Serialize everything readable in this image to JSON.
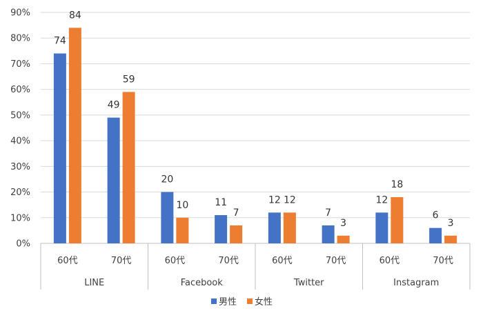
{
  "chart_data": {
    "type": "bar",
    "groups": [
      {
        "label": "LINE",
        "subcategories": [
          "60代",
          "70代"
        ]
      },
      {
        "label": "Facebook",
        "subcategories": [
          "60代",
          "70代"
        ]
      },
      {
        "label": "Twitter",
        "subcategories": [
          "60代",
          "70代"
        ]
      },
      {
        "label": "Instagram",
        "subcategories": [
          "60代",
          "70代"
        ]
      }
    ],
    "series": [
      {
        "name": "男性",
        "color": "#4472C4",
        "values": [
          74,
          49,
          20,
          11,
          12,
          7,
          12,
          6
        ],
        "labels": [
          "74",
          "49",
          "20",
          "11",
          "12",
          "7",
          "12",
          "6"
        ]
      },
      {
        "name": "女性",
        "color": "#ED7D31",
        "values": [
          84,
          59,
          10,
          7,
          12,
          3,
          18,
          3
        ],
        "labels": [
          "84",
          "59",
          "10",
          "7",
          "12",
          "3",
          "18",
          "3"
        ]
      }
    ],
    "ylim": [
      0,
      90
    ],
    "yticks": [
      "0%",
      "10%",
      "20%",
      "30%",
      "40%",
      "50%",
      "60%",
      "70%",
      "80%",
      "90%"
    ],
    "grid": true,
    "legend": "bottom-center"
  }
}
